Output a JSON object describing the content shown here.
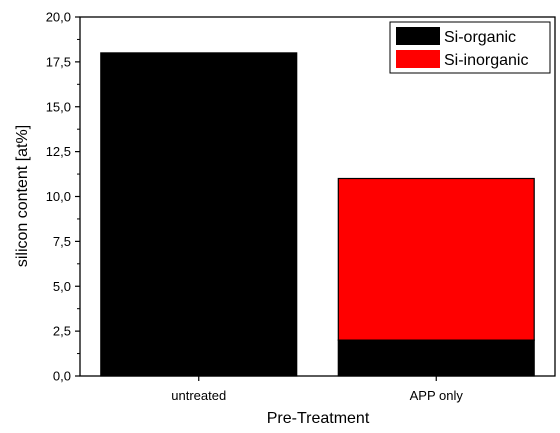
{
  "chart_data": {
    "type": "bar",
    "stacked": true,
    "categories": [
      "untreated",
      "APP only"
    ],
    "series": [
      {
        "name": "Si-organic",
        "values": [
          18.0,
          2.0
        ],
        "color": "#000000"
      },
      {
        "name": "Si-inorganic",
        "values": [
          0.0,
          9.0
        ],
        "color": "#ff0000"
      }
    ],
    "xlabel": "Pre-Treatment",
    "ylabel": "silicon content [at%]",
    "ylim": [
      0,
      20
    ],
    "yticks": [
      "0,0",
      "2,5",
      "5,0",
      "7,5",
      "10,0",
      "12,5",
      "15,0",
      "17,5",
      "20,0"
    ],
    "grid": false,
    "legend_position": "top-right"
  }
}
